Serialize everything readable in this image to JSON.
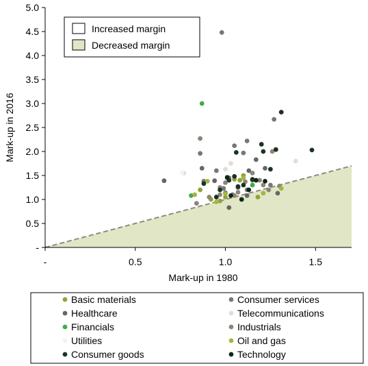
{
  "chart_data": {
    "type": "scatter",
    "title": "",
    "xlabel": "Mark-up in 1980",
    "ylabel": "Mark-up in 2016",
    "xlim": [
      0,
      1.7
    ],
    "ylim": [
      0,
      5.0
    ],
    "x_ticks": [
      {
        "value": 0,
        "label": "-"
      },
      {
        "value": 0.5,
        "label": "0.5"
      },
      {
        "value": 1.0,
        "label": "1.0"
      },
      {
        "value": 1.5,
        "label": "1.5"
      }
    ],
    "y_ticks": [
      {
        "value": 0,
        "label": "-"
      },
      {
        "value": 0.5,
        "label": "0.5"
      },
      {
        "value": 1.0,
        "label": "1.0"
      },
      {
        "value": 1.5,
        "label": "1.5"
      },
      {
        "value": 2.0,
        "label": "2.0"
      },
      {
        "value": 2.5,
        "label": "2.5"
      },
      {
        "value": 3.0,
        "label": "3.0"
      },
      {
        "value": 3.5,
        "label": "3.5"
      },
      {
        "value": 4.0,
        "label": "4.0"
      },
      {
        "value": 4.5,
        "label": "4.5"
      },
      {
        "value": 5.0,
        "label": "5.0"
      }
    ],
    "grid": false,
    "region_legend": {
      "placement": "top-left",
      "entries": [
        {
          "label": "Increased margin",
          "color": "#ffffff"
        },
        {
          "label": "Decreased margin",
          "color": "#e1e6c7"
        }
      ]
    },
    "region_colors": {
      "decreased_fill": "#e1e6c7",
      "diagonal_line": "#8c8c7c"
    },
    "legend_placement": "bottom",
    "series": [
      {
        "name": "Basic materials",
        "color": "#8ea33a",
        "points": [
          [
            0.86,
            1.2
          ],
          [
            0.92,
            1.0
          ],
          [
            1.0,
            1.05
          ],
          [
            1.05,
            1.42
          ],
          [
            1.1,
            1.5
          ],
          [
            1.18,
            1.05
          ],
          [
            0.97,
            0.97
          ],
          [
            1.08,
            1.4
          ]
        ]
      },
      {
        "name": "Consumer services",
        "color": "#777777",
        "points": [
          [
            0.98,
            4.48
          ],
          [
            1.27,
            2.67
          ],
          [
            1.12,
            2.22
          ],
          [
            1.05,
            2.12
          ],
          [
            0.86,
            1.96
          ],
          [
            1.1,
            1.97
          ],
          [
            1.02,
            1.45
          ],
          [
            1.15,
            1.4
          ],
          [
            0.95,
            1.6
          ],
          [
            1.25,
            1.3
          ],
          [
            0.88,
            1.38
          ],
          [
            1.0,
            1.14
          ],
          [
            1.04,
            1.1
          ],
          [
            1.12,
            1.2
          ],
          [
            0.99,
            1.23
          ]
        ]
      },
      {
        "name": "Telecommunications",
        "color": "#dfdfd8",
        "points": [
          [
            1.39,
            1.8
          ],
          [
            1.03,
            1.75
          ],
          [
            0.77,
            1.55
          ],
          [
            1.0,
            1.63
          ]
        ]
      },
      {
        "name": "Healthcare",
        "color": "#666666",
        "points": [
          [
            0.66,
            1.39
          ],
          [
            0.94,
            1.39
          ],
          [
            1.13,
            1.6
          ],
          [
            1.17,
            1.83
          ],
          [
            0.87,
            1.65
          ],
          [
            1.02,
            0.83
          ],
          [
            0.95,
            1.05
          ],
          [
            1.29,
            1.13
          ],
          [
            1.12,
            1.08
          ],
          [
            1.22,
            1.65
          ],
          [
            1.07,
            1.25
          ]
        ]
      },
      {
        "name": "Financials",
        "color": "#3fab4a",
        "points": [
          [
            0.87,
            3.0
          ],
          [
            0.81,
            1.08
          ],
          [
            1.15,
            1.3
          ]
        ]
      },
      {
        "name": "Industrials",
        "color": "#8e8378",
        "points": [
          [
            0.86,
            2.27
          ],
          [
            1.26,
            2.0
          ],
          [
            1.01,
            1.45
          ],
          [
            1.0,
            1.35
          ],
          [
            0.97,
            1.1
          ],
          [
            0.91,
            1.05
          ],
          [
            1.21,
            1.3
          ],
          [
            1.07,
            1.15
          ],
          [
            1.15,
            1.55
          ],
          [
            1.3,
            1.28
          ],
          [
            0.97,
            1.25
          ],
          [
            1.05,
            1.08
          ],
          [
            1.11,
            1.37
          ],
          [
            0.84,
            0.92
          ],
          [
            1.19,
            1.4
          ],
          [
            1.24,
            1.2
          ]
        ]
      },
      {
        "name": "Utilities",
        "color": "#f4f4ee",
        "points": [
          [
            0.76,
            1.56
          ]
        ]
      },
      {
        "name": "Oil and gas",
        "color": "#a4b545",
        "points": [
          [
            0.83,
            1.1
          ],
          [
            1.0,
            1.12
          ],
          [
            1.21,
            1.13
          ],
          [
            1.31,
            1.23
          ],
          [
            0.9,
            1.38
          ],
          [
            1.1,
            1.45
          ],
          [
            0.95,
            0.95
          ]
        ]
      },
      {
        "name": "Consumer goods",
        "color": "#1b3322",
        "points": [
          [
            1.31,
            2.82
          ],
          [
            1.2,
            2.15
          ],
          [
            1.28,
            2.04
          ],
          [
            1.48,
            2.03
          ],
          [
            1.21,
            2.0
          ],
          [
            1.06,
            1.98
          ],
          [
            1.25,
            1.63
          ],
          [
            1.05,
            1.48
          ],
          [
            0.88,
            1.33
          ],
          [
            1.1,
            1.3
          ],
          [
            1.02,
            1.4
          ],
          [
            0.97,
            1.2
          ],
          [
            1.15,
            1.42
          ],
          [
            1.07,
            1.27
          ],
          [
            0.95,
            1.05
          ]
        ]
      },
      {
        "name": "Technology",
        "color": "#0f2618",
        "points": [
          [
            1.01,
            1.46
          ],
          [
            1.17,
            1.4
          ],
          [
            1.13,
            1.2
          ],
          [
            1.03,
            1.08
          ],
          [
            1.22,
            1.38
          ],
          [
            1.09,
            1.0
          ]
        ]
      }
    ],
    "legend_columns": [
      [
        "Basic materials",
        "Healthcare",
        "Financials",
        "Utilities",
        "Consumer goods"
      ],
      [
        "Consumer services",
        "Telecommunications",
        "Industrials",
        "Oil and gas",
        "Technology"
      ]
    ]
  }
}
